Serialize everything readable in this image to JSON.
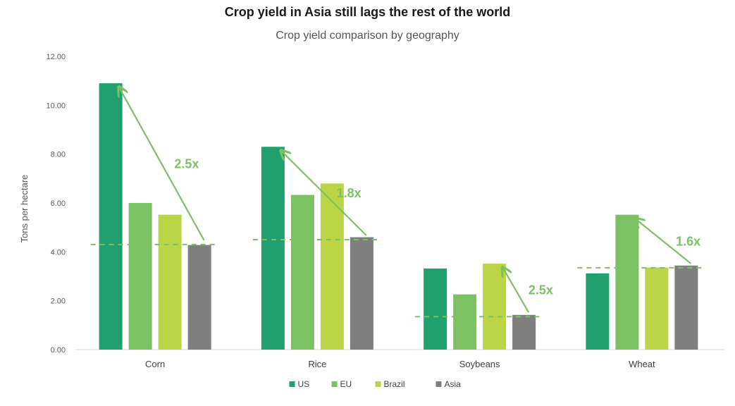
{
  "title": "Crop yield in Asia still lags the rest of the world",
  "subtitle": "Crop yield comparison by geography",
  "chart_data": {
    "type": "bar",
    "categories": [
      "Corn",
      "Rice",
      "Soybeans",
      "Wheat"
    ],
    "series": [
      {
        "name": "US",
        "color": "#1fa06e",
        "values": [
          10.9,
          8.3,
          3.32,
          3.12
        ]
      },
      {
        "name": "EU",
        "color": "#7cc263",
        "values": [
          6.0,
          6.33,
          2.26,
          5.52
        ]
      },
      {
        "name": "Brazil",
        "color": "#bcd546",
        "values": [
          5.52,
          6.8,
          3.52,
          3.36
        ]
      },
      {
        "name": "Asia",
        "color": "#7f7f7f",
        "values": [
          4.28,
          4.6,
          1.42,
          3.44
        ]
      }
    ],
    "ylabel": "Tons per hectare",
    "ylim": [
      0,
      12
    ],
    "yticks": [
      "0.00",
      "2.00",
      "4.00",
      "6.00",
      "8.00",
      "10.00",
      "12.00"
    ],
    "ytick_values": [
      0,
      2,
      4,
      6,
      8,
      10,
      12
    ],
    "legend_position": "bottom",
    "grid": false,
    "annotation_color": "#7cc263",
    "annotations": [
      {
        "category": "Corn",
        "label": "2.5x",
        "from": "Asia",
        "to": "US",
        "baseline": 4.3
      },
      {
        "category": "Rice",
        "label": "1.8x",
        "from": "Asia",
        "to": "US",
        "baseline": 4.5
      },
      {
        "category": "Soybeans",
        "label": "2.5x",
        "from": "Asia",
        "to": "Brazil",
        "baseline": 1.35
      },
      {
        "category": "Wheat",
        "label": "1.6x",
        "from": "Asia",
        "to": "EU",
        "baseline": 3.35
      }
    ]
  }
}
